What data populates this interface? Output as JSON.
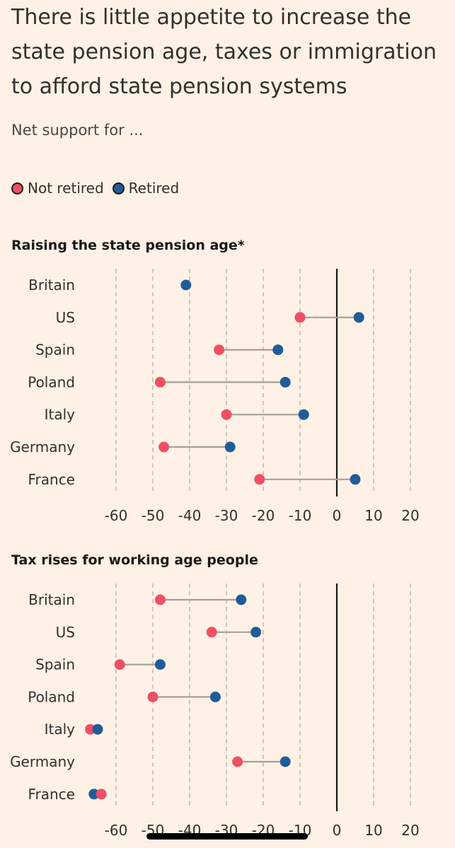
{
  "title": "There is little appetite to increase the state pension age, taxes or immigration to afford state pension systems",
  "subtitle": "Net support for ...",
  "legend": {
    "not_retired": "Not retired",
    "retired": "Retired"
  },
  "colors": {
    "not_retired": "#f05064",
    "retired": "#1f5c99",
    "connector": "#a6a09b",
    "zero_line": "#1a1817",
    "grid": "#b8aea6"
  },
  "chart_data": [
    {
      "type": "dot-plot",
      "title": "Raising the state pension age*",
      "categories": [
        "Britain",
        "US",
        "Spain",
        "Poland",
        "Italy",
        "Germany",
        "France"
      ],
      "xlim": [
        -60,
        20
      ],
      "xticks": [
        -60,
        -50,
        -40,
        -30,
        -20,
        -10,
        0,
        10,
        20
      ],
      "series": [
        {
          "name": "Not retired",
          "values": [
            null,
            -10,
            -32,
            -48,
            -30,
            -47,
            -21
          ]
        },
        {
          "name": "Retired",
          "values": [
            -41,
            6,
            -16,
            -14,
            -9,
            -29,
            5
          ]
        }
      ]
    },
    {
      "type": "dot-plot",
      "title": "Tax rises for working age people",
      "categories": [
        "Britain",
        "US",
        "Spain",
        "Poland",
        "Italy",
        "Germany",
        "France"
      ],
      "xlim": [
        -60,
        20
      ],
      "xticks": [
        -60,
        -50,
        -40,
        -30,
        -20,
        -10,
        0,
        10,
        20
      ],
      "series": [
        {
          "name": "Not retired",
          "values": [
            -48,
            -34,
            -59,
            -50,
            -67,
            -27,
            -64
          ]
        },
        {
          "name": "Retired",
          "values": [
            -26,
            -22,
            -48,
            -33,
            -65,
            -14,
            -66
          ]
        }
      ]
    }
  ]
}
